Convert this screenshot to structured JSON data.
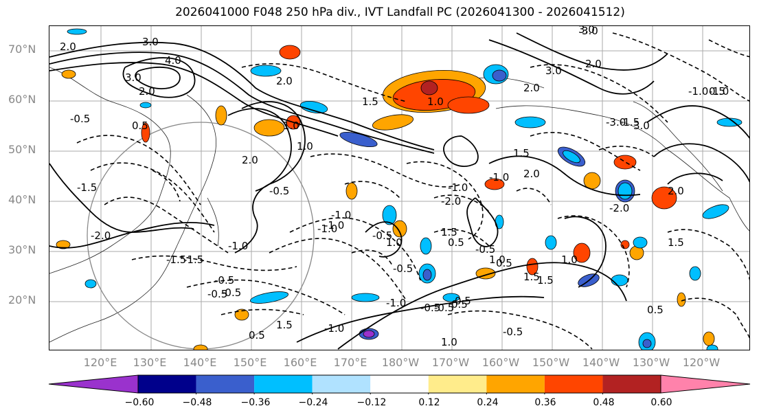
{
  "title": "2026041000 F048 250 hPa div., IVT Landfall PC (2026041300 - 2026041512)",
  "lat_labels": [
    "70°N",
    "60°N",
    "50°N",
    "40°N",
    "30°N",
    "20°N"
  ],
  "lon_labels": [
    "120°E",
    "130°E",
    "140°E",
    "150°E",
    "160°E",
    "170°E",
    "180°W",
    "170°W",
    "160°W",
    "150°W",
    "140°W",
    "130°W",
    "120°W"
  ],
  "colorbar": {
    "colors": [
      "#9a32cd",
      "#00008b",
      "#3a5fcd",
      "#00bfff",
      "#b0e2ff",
      "#ffffff",
      "#ffec8b",
      "#ffa500",
      "#ff4500",
      "#b22222",
      "#ff82ab"
    ],
    "ticks": [
      "−0.60",
      "−0.48",
      "−0.36",
      "−0.24",
      "−0.12",
      "0.12",
      "0.24",
      "0.36",
      "0.48",
      "0.60"
    ]
  },
  "contour_labels": [
    "3.0",
    "2.0",
    "4.0",
    "3.0",
    "2.0",
    "1.0",
    "3.0",
    "2.0",
    "1.0",
    "1.5",
    "3.0",
    "2.0",
    "3.0",
    "0.5",
    "2.0",
    "3.0",
    "-1.0",
    "-3.0",
    "-1.0",
    "1.0",
    "-0.5",
    "-1.5",
    "-2.0",
    "2.0",
    "-0.5",
    "-1.0",
    "-1.5",
    "-2.0",
    "-1.0",
    "1.5",
    "-1.0",
    "2.0",
    "-0.5",
    "-1.5",
    "-0.5",
    "1.0",
    "0.5",
    "-0.5",
    "-1.0",
    "1.5",
    "1.0",
    "-0.5",
    "-0.5",
    "0.5",
    "1.0",
    "-1.0",
    "0.5",
    "1.5",
    "1.0",
    "-1.0",
    "0.5",
    "-1.0",
    "0.5",
    "-0.5",
    "1.5",
    "0.5",
    "-0.5",
    "1.5",
    "-0.5",
    "-0.5",
    "1.5",
    "2.0",
    "-1.0",
    "0.5",
    "-1.5",
    "-2.0"
  ]
}
